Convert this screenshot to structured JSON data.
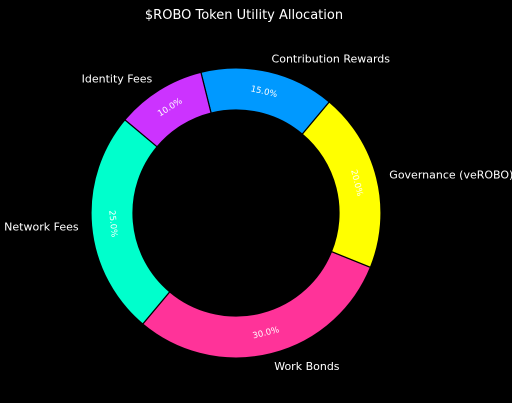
{
  "chart_data": {
    "type": "pie",
    "variant": "donut",
    "title": "$ROBO Token Utility Allocation",
    "background": "#000000",
    "text_color": "#ffffff",
    "categories": [
      "Network Fees",
      "Work Bonds",
      "Governance (veROBO)",
      "Contribution Rewards",
      "Identity Fees"
    ],
    "values": [
      25.0,
      30.0,
      20.0,
      15.0,
      10.0
    ],
    "value_labels": [
      "25.0%",
      "30.0%",
      "20.0%",
      "15.0%",
      "10.0%"
    ],
    "colors": [
      "#00FFCC",
      "#FF3399",
      "#FFFF00",
      "#0099FF",
      "#CC33FF"
    ],
    "start_angle_deg": 140,
    "direction": "counterclockwise"
  }
}
